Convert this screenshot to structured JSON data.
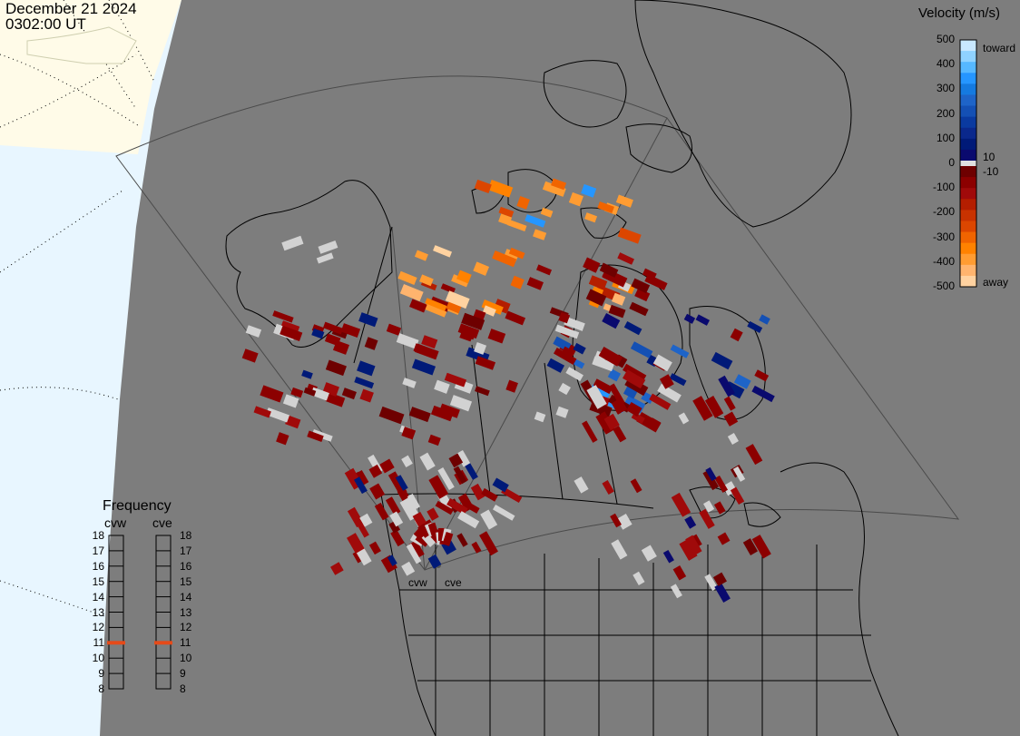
{
  "header": {
    "date": "December 21 2024",
    "time": "0302:00 UT"
  },
  "velocity_scale": {
    "title": "Velocity (m/s)",
    "ticks": [
      "500",
      "400",
      "300",
      "200",
      "100",
      "0",
      "-100",
      "-200",
      "-300",
      "-400",
      "-500"
    ],
    "near_zero": [
      "10",
      "-10"
    ],
    "toward_label": "toward",
    "away_label": "away",
    "colors_toward": [
      "#c8e8ff",
      "#8fd2ff",
      "#56b8ff",
      "#2596ff",
      "#157ae0",
      "#1e64c8",
      "#1450b4",
      "#0a3aa0",
      "#0a288c",
      "#001a78",
      "#0a0a6e"
    ],
    "colors_away": [
      "#6e0000",
      "#8c0000",
      "#a00a0a",
      "#b41e00",
      "#c83200",
      "#dc4600",
      "#f06400",
      "#ff8200",
      "#ff9c32",
      "#ffb46e",
      "#ffd2a0"
    ]
  },
  "frequency": {
    "title": "Frequency",
    "radars": [
      "cvw",
      "cve"
    ],
    "ticks": [
      "18",
      "17",
      "16",
      "15",
      "14",
      "13",
      "12",
      "11",
      "10",
      "9",
      "8"
    ],
    "cvw_mhz": 11,
    "cve_mhz": 11
  },
  "radar_labels": [
    "cvw",
    "cve"
  ],
  "colors": {
    "land": "#7d7d7d",
    "space": "#e8f6ff",
    "sunlit": "#fffbe8",
    "ground_scatter": "#d2d2d2",
    "coast": "#000000",
    "frequency_marker": "#e64a19"
  }
}
